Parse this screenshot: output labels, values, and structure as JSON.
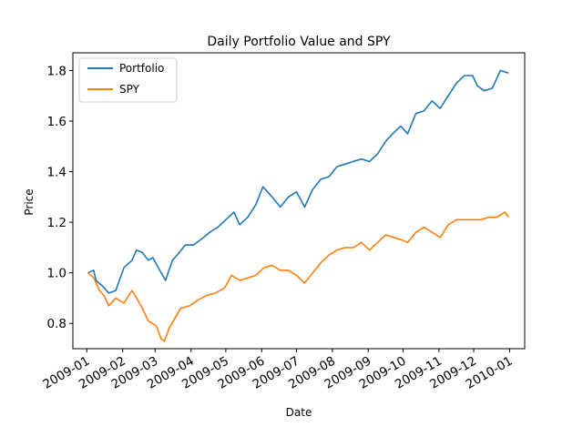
{
  "chart_data": {
    "type": "line",
    "title": "Daily Portfolio Value and SPY",
    "xlabel": "Date",
    "ylabel": "Price",
    "xlim": [
      "2008-12-20",
      "2010-01-14"
    ],
    "ylim": [
      0.7,
      1.87
    ],
    "x_ticks": [
      "2009-01-01",
      "2009-02-01",
      "2009-03-01",
      "2009-04-01",
      "2009-05-01",
      "2009-06-01",
      "2009-07-01",
      "2009-08-01",
      "2009-09-01",
      "2009-10-01",
      "2009-11-01",
      "2009-12-01",
      "2010-01-01"
    ],
    "x_tick_labels": [
      "2009-01",
      "2009-02",
      "2009-03",
      "2009-04",
      "2009-05",
      "2009-06",
      "2009-07",
      "2009-08",
      "2009-09",
      "2009-10",
      "2009-11",
      "2009-12",
      "2010-01"
    ],
    "y_ticks": [
      0.8,
      1.0,
      1.2,
      1.4,
      1.6,
      1.8
    ],
    "y_tick_labels": [
      "0.8",
      "1.0",
      "1.2",
      "1.4",
      "1.6",
      "1.8"
    ],
    "grid": false,
    "legend": "top-left",
    "series": [
      {
        "name": "Portfolio",
        "color": "#1f77b4",
        "points": [
          [
            "2009-01-02",
            1.0
          ],
          [
            "2009-01-07",
            1.01
          ],
          [
            "2009-01-09",
            0.97
          ],
          [
            "2009-01-14",
            0.95
          ],
          [
            "2009-01-20",
            0.92
          ],
          [
            "2009-01-26",
            0.93
          ],
          [
            "2009-02-02",
            1.02
          ],
          [
            "2009-02-09",
            1.05
          ],
          [
            "2009-02-13",
            1.09
          ],
          [
            "2009-02-18",
            1.08
          ],
          [
            "2009-02-23",
            1.05
          ],
          [
            "2009-02-27",
            1.06
          ],
          [
            "2009-03-05",
            1.01
          ],
          [
            "2009-03-10",
            0.97
          ],
          [
            "2009-03-16",
            1.05
          ],
          [
            "2009-03-20",
            1.07
          ],
          [
            "2009-03-27",
            1.11
          ],
          [
            "2009-04-03",
            1.11
          ],
          [
            "2009-04-09",
            1.13
          ],
          [
            "2009-04-17",
            1.16
          ],
          [
            "2009-04-24",
            1.18
          ],
          [
            "2009-05-01",
            1.21
          ],
          [
            "2009-05-08",
            1.24
          ],
          [
            "2009-05-13",
            1.19
          ],
          [
            "2009-05-20",
            1.22
          ],
          [
            "2009-05-27",
            1.27
          ],
          [
            "2009-06-02",
            1.34
          ],
          [
            "2009-06-10",
            1.3
          ],
          [
            "2009-06-17",
            1.26
          ],
          [
            "2009-06-24",
            1.3
          ],
          [
            "2009-07-01",
            1.32
          ],
          [
            "2009-07-08",
            1.26
          ],
          [
            "2009-07-15",
            1.33
          ],
          [
            "2009-07-22",
            1.37
          ],
          [
            "2009-07-29",
            1.38
          ],
          [
            "2009-08-05",
            1.42
          ],
          [
            "2009-08-12",
            1.43
          ],
          [
            "2009-08-19",
            1.44
          ],
          [
            "2009-08-26",
            1.45
          ],
          [
            "2009-09-02",
            1.44
          ],
          [
            "2009-09-09",
            1.47
          ],
          [
            "2009-09-16",
            1.52
          ],
          [
            "2009-09-22",
            1.55
          ],
          [
            "2009-09-29",
            1.58
          ],
          [
            "2009-10-05",
            1.55
          ],
          [
            "2009-10-12",
            1.63
          ],
          [
            "2009-10-19",
            1.64
          ],
          [
            "2009-10-26",
            1.68
          ],
          [
            "2009-11-02",
            1.65
          ],
          [
            "2009-11-09",
            1.7
          ],
          [
            "2009-11-16",
            1.75
          ],
          [
            "2009-11-23",
            1.78
          ],
          [
            "2009-11-30",
            1.78
          ],
          [
            "2009-12-04",
            1.74
          ],
          [
            "2009-12-10",
            1.72
          ],
          [
            "2009-12-17",
            1.73
          ],
          [
            "2009-12-24",
            1.8
          ],
          [
            "2009-12-31",
            1.79
          ]
        ]
      },
      {
        "name": "SPY",
        "color": "#ff7f0e",
        "points": [
          [
            "2009-01-02",
            1.0
          ],
          [
            "2009-01-07",
            0.98
          ],
          [
            "2009-01-12",
            0.93
          ],
          [
            "2009-01-16",
            0.91
          ],
          [
            "2009-01-20",
            0.87
          ],
          [
            "2009-01-26",
            0.9
          ],
          [
            "2009-02-02",
            0.88
          ],
          [
            "2009-02-09",
            0.93
          ],
          [
            "2009-02-13",
            0.9
          ],
          [
            "2009-02-18",
            0.86
          ],
          [
            "2009-02-23",
            0.81
          ],
          [
            "2009-03-02",
            0.79
          ],
          [
            "2009-03-06",
            0.74
          ],
          [
            "2009-03-09",
            0.73
          ],
          [
            "2009-03-13",
            0.78
          ],
          [
            "2009-03-18",
            0.82
          ],
          [
            "2009-03-23",
            0.86
          ],
          [
            "2009-03-31",
            0.87
          ],
          [
            "2009-04-06",
            0.89
          ],
          [
            "2009-04-14",
            0.91
          ],
          [
            "2009-04-22",
            0.92
          ],
          [
            "2009-04-30",
            0.94
          ],
          [
            "2009-05-06",
            0.99
          ],
          [
            "2009-05-13",
            0.97
          ],
          [
            "2009-05-20",
            0.98
          ],
          [
            "2009-05-27",
            0.99
          ],
          [
            "2009-06-03",
            1.02
          ],
          [
            "2009-06-10",
            1.03
          ],
          [
            "2009-06-17",
            1.01
          ],
          [
            "2009-06-24",
            1.01
          ],
          [
            "2009-07-01",
            0.99
          ],
          [
            "2009-07-08",
            0.96
          ],
          [
            "2009-07-15",
            1.0
          ],
          [
            "2009-07-22",
            1.04
          ],
          [
            "2009-07-29",
            1.07
          ],
          [
            "2009-08-05",
            1.09
          ],
          [
            "2009-08-12",
            1.1
          ],
          [
            "2009-08-19",
            1.1
          ],
          [
            "2009-08-26",
            1.12
          ],
          [
            "2009-09-02",
            1.09
          ],
          [
            "2009-09-09",
            1.12
          ],
          [
            "2009-09-16",
            1.15
          ],
          [
            "2009-09-23",
            1.14
          ],
          [
            "2009-09-30",
            1.13
          ],
          [
            "2009-10-05",
            1.12
          ],
          [
            "2009-10-12",
            1.16
          ],
          [
            "2009-10-19",
            1.18
          ],
          [
            "2009-10-26",
            1.16
          ],
          [
            "2009-11-02",
            1.14
          ],
          [
            "2009-11-09",
            1.19
          ],
          [
            "2009-11-16",
            1.21
          ],
          [
            "2009-11-23",
            1.21
          ],
          [
            "2009-11-30",
            1.21
          ],
          [
            "2009-12-07",
            1.21
          ],
          [
            "2009-12-14",
            1.22
          ],
          [
            "2009-12-21",
            1.22
          ],
          [
            "2009-12-28",
            1.24
          ],
          [
            "2009-12-31",
            1.22
          ]
        ]
      }
    ]
  }
}
